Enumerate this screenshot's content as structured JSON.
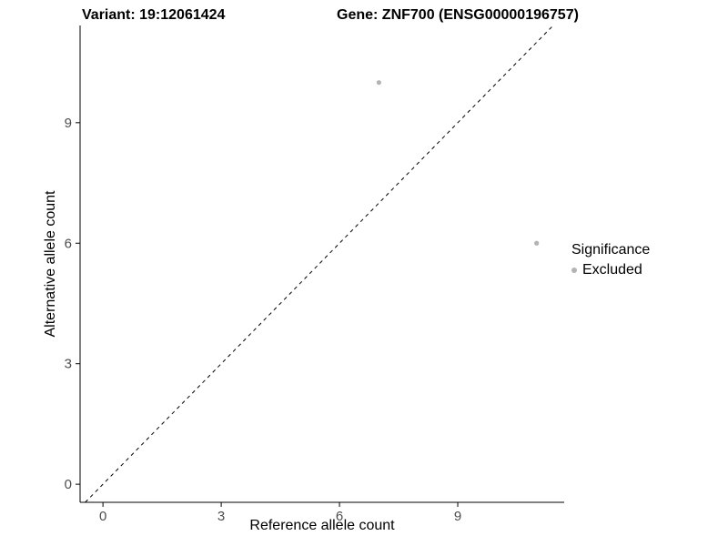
{
  "chart_data": {
    "type": "scatter",
    "title": "Variant: 19:12061424    Gene: ZNF700 (ENSG00000196757)",
    "title_parts": [
      "Variant: 19:12061424",
      "Gene: ZNF700 (ENSG00000196757)"
    ],
    "xlabel": "Reference allele count",
    "ylabel": "Alternative allele count",
    "xticks": [
      0,
      3,
      6,
      9
    ],
    "yticks": [
      0,
      3,
      6,
      9
    ],
    "xlim": [
      -0.58,
      11.7
    ],
    "ylim": [
      -0.45,
      11.42
    ],
    "grid": false,
    "background": "#ffffff",
    "axis_color": "#000000",
    "tick_label_color": "#4d4d4d",
    "series": [
      {
        "name": "Excluded",
        "color": "#b3b3b3",
        "points": [
          {
            "x": 7,
            "y": 10
          },
          {
            "x": 11,
            "y": 6
          }
        ]
      }
    ],
    "reference_line": {
      "type": "identity",
      "style": "dashed",
      "color": "#000000"
    },
    "legend": {
      "title": "Significance",
      "position": "right",
      "entries": [
        {
          "label": "Excluded",
          "color": "#b3b3b3"
        }
      ]
    }
  }
}
